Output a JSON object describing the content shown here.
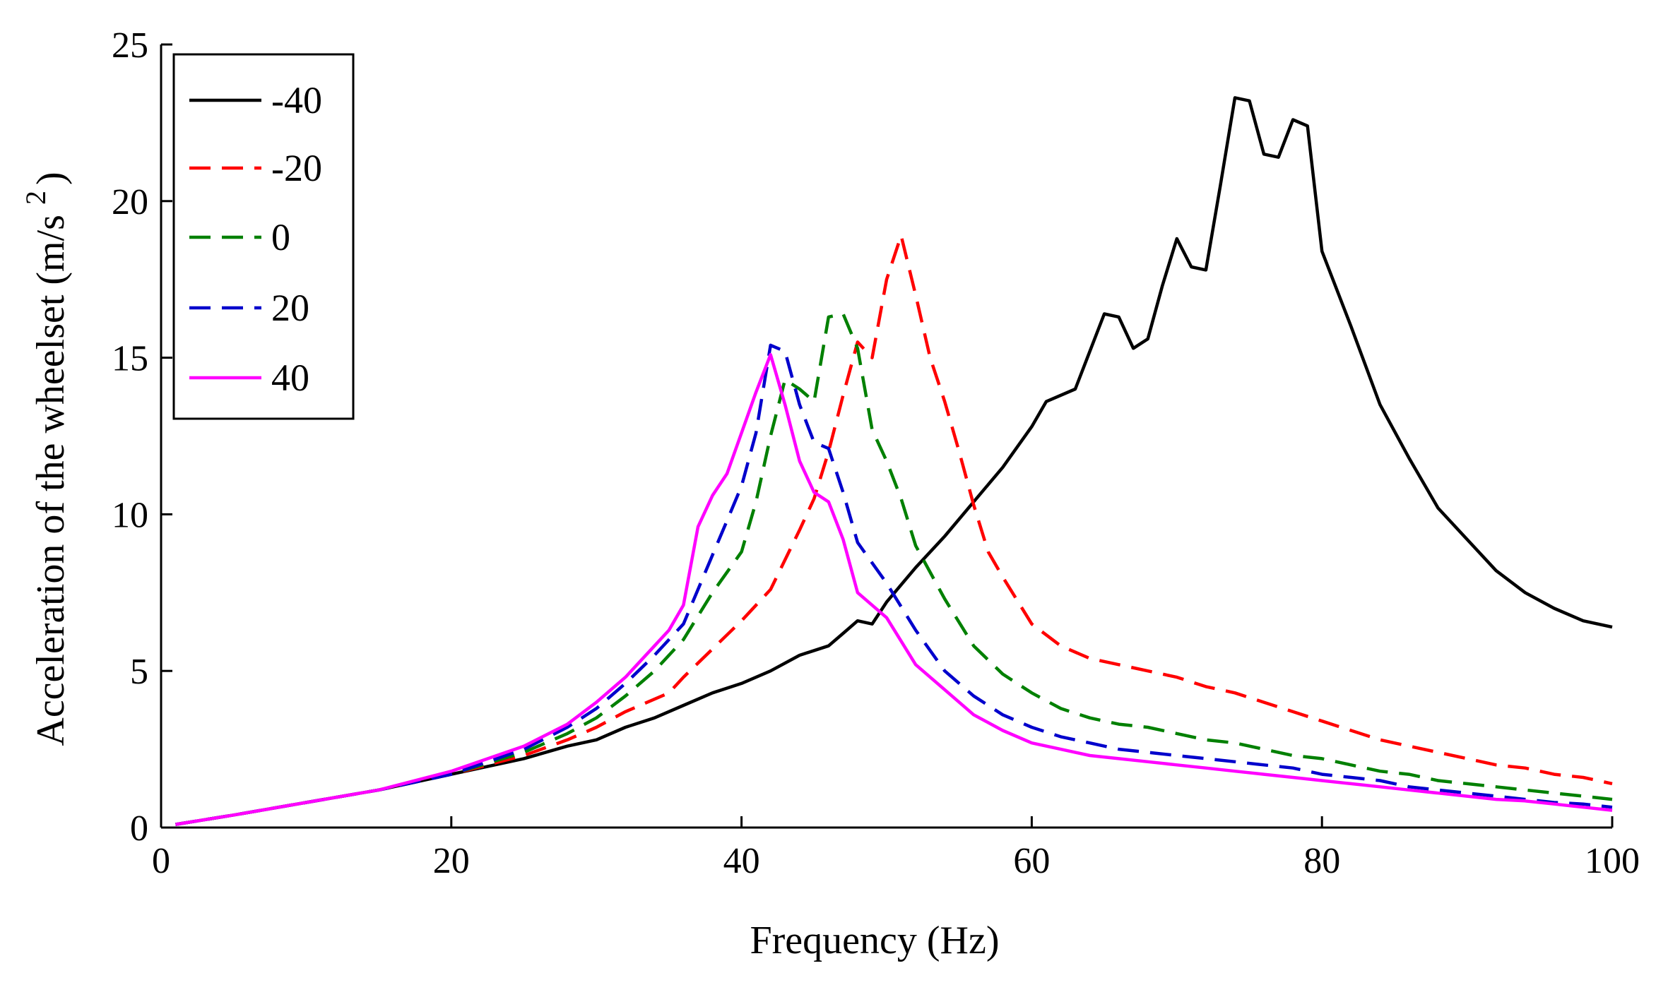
{
  "chart_data": {
    "type": "line",
    "title": "",
    "xlabel": "Frequency (Hz)",
    "ylabel_main": "Acceleration of the wheelset (m/s",
    "ylabel_sup": "2",
    "ylabel_close": ")",
    "xlim": [
      0,
      100
    ],
    "ylim": [
      0,
      25
    ],
    "xticks": [
      0,
      20,
      40,
      60,
      80,
      100
    ],
    "yticks": [
      0,
      5,
      10,
      15,
      20,
      25
    ],
    "xtick_labels": [
      "0",
      "20",
      "40",
      "60",
      "80",
      "100"
    ],
    "ytick_labels": [
      "0",
      "5",
      "10",
      "15",
      "20",
      "25"
    ],
    "grid": false,
    "legend_position": "top-left",
    "series": [
      {
        "name": "-40",
        "color": "#000000",
        "dash": "solid",
        "x": [
          1,
          5,
          10,
          15,
          20,
          25,
          28,
          30,
          32,
          34,
          36,
          38,
          40,
          42,
          44,
          46,
          47,
          48,
          49,
          50,
          52,
          54,
          56,
          58,
          60,
          61,
          63,
          65,
          66,
          67,
          68,
          69,
          70,
          71,
          72,
          73,
          74,
          75,
          76,
          77,
          78,
          79,
          80,
          82,
          84,
          86,
          88,
          90,
          92,
          94,
          96,
          98,
          100
        ],
        "y": [
          0.1,
          0.4,
          0.8,
          1.2,
          1.7,
          2.2,
          2.6,
          2.8,
          3.2,
          3.5,
          3.9,
          4.3,
          4.6,
          5.0,
          5.5,
          5.8,
          6.2,
          6.6,
          6.5,
          7.2,
          8.3,
          9.3,
          10.4,
          11.5,
          12.8,
          13.6,
          14.0,
          16.4,
          16.3,
          15.3,
          15.6,
          17.3,
          18.8,
          17.9,
          17.8,
          20.5,
          23.3,
          23.2,
          21.5,
          21.4,
          22.6,
          22.4,
          18.4,
          16.0,
          13.5,
          11.8,
          10.2,
          9.2,
          8.2,
          7.5,
          7.0,
          6.6,
          6.4
        ]
      },
      {
        "name": "-20",
        "color": "#ff0000",
        "dash": "dashed",
        "x": [
          1,
          5,
          10,
          15,
          20,
          25,
          28,
          30,
          32,
          35,
          36,
          38,
          40,
          42,
          44,
          45,
          46,
          47,
          48,
          49,
          50,
          51,
          52,
          53,
          54,
          55,
          56,
          57,
          58,
          60,
          62,
          64,
          66,
          68,
          70,
          72,
          74,
          76,
          78,
          80,
          82,
          84,
          86,
          88,
          90,
          92,
          94,
          96,
          98,
          100
        ],
        "y": [
          0.1,
          0.4,
          0.8,
          1.2,
          1.7,
          2.3,
          2.8,
          3.2,
          3.7,
          4.3,
          4.8,
          5.7,
          6.6,
          7.6,
          9.5,
          10.5,
          12.0,
          13.8,
          15.5,
          15.0,
          17.5,
          18.9,
          17.0,
          15.0,
          13.6,
          12.0,
          10.3,
          8.8,
          8.0,
          6.5,
          5.8,
          5.4,
          5.2,
          5.0,
          4.8,
          4.5,
          4.3,
          4.0,
          3.7,
          3.4,
          3.1,
          2.8,
          2.6,
          2.4,
          2.2,
          2.0,
          1.9,
          1.7,
          1.6,
          1.4
        ]
      },
      {
        "name": "0",
        "color": "#008000",
        "dash": "dashed",
        "x": [
          1,
          5,
          10,
          15,
          20,
          25,
          28,
          30,
          32,
          34,
          36,
          38,
          40,
          41,
          42,
          43,
          44,
          45,
          46,
          47,
          48,
          49,
          50,
          51,
          52,
          54,
          56,
          58,
          60,
          62,
          64,
          66,
          68,
          70,
          72,
          74,
          76,
          78,
          80,
          82,
          84,
          86,
          88,
          90,
          92,
          94,
          96,
          98,
          100
        ],
        "y": [
          0.1,
          0.4,
          0.8,
          1.2,
          1.7,
          2.4,
          3.0,
          3.5,
          4.2,
          5.0,
          6.0,
          7.5,
          8.8,
          10.4,
          12.5,
          14.3,
          14.0,
          13.6,
          16.3,
          16.4,
          15.3,
          12.7,
          11.7,
          10.5,
          9.0,
          7.3,
          5.8,
          4.9,
          4.3,
          3.8,
          3.5,
          3.3,
          3.2,
          3.0,
          2.8,
          2.7,
          2.5,
          2.3,
          2.2,
          2.0,
          1.8,
          1.7,
          1.5,
          1.4,
          1.3,
          1.2,
          1.1,
          1.0,
          0.9
        ]
      },
      {
        "name": "20",
        "color": "#0000cc",
        "dash": "dashed",
        "x": [
          1,
          5,
          10,
          15,
          20,
          25,
          28,
          30,
          32,
          34,
          36,
          38,
          39,
          40,
          41,
          42,
          43,
          44,
          45,
          46,
          47,
          48,
          50,
          52,
          54,
          56,
          58,
          60,
          62,
          64,
          66,
          68,
          70,
          72,
          74,
          76,
          78,
          80,
          82,
          84,
          86,
          88,
          90,
          92,
          94,
          96,
          98,
          100
        ],
        "y": [
          0.1,
          0.4,
          0.8,
          1.2,
          1.7,
          2.5,
          3.2,
          3.8,
          4.6,
          5.5,
          6.5,
          8.7,
          9.8,
          10.9,
          12.6,
          15.4,
          15.2,
          13.5,
          12.3,
          12.1,
          10.7,
          9.1,
          7.8,
          6.3,
          5.0,
          4.2,
          3.6,
          3.2,
          2.9,
          2.7,
          2.5,
          2.4,
          2.3,
          2.2,
          2.1,
          2.0,
          1.9,
          1.7,
          1.6,
          1.5,
          1.3,
          1.2,
          1.1,
          1.0,
          0.9,
          0.8,
          0.75,
          0.65
        ]
      },
      {
        "name": "40",
        "color": "#ff00ff",
        "dash": "solid",
        "x": [
          1,
          5,
          10,
          15,
          20,
          25,
          28,
          30,
          32,
          34,
          35,
          36,
          37,
          38,
          39,
          40,
          41,
          42,
          43,
          44,
          45,
          46,
          47,
          48,
          50,
          52,
          54,
          56,
          58,
          60,
          62,
          64,
          66,
          68,
          70,
          72,
          74,
          76,
          78,
          80,
          82,
          84,
          86,
          88,
          90,
          92,
          94,
          96,
          98,
          100
        ],
        "y": [
          0.1,
          0.4,
          0.8,
          1.2,
          1.8,
          2.6,
          3.3,
          4.0,
          4.8,
          5.8,
          6.3,
          7.1,
          9.6,
          10.6,
          11.3,
          12.6,
          13.9,
          15.1,
          13.5,
          11.7,
          10.7,
          10.4,
          9.2,
          7.5,
          6.7,
          5.2,
          4.4,
          3.6,
          3.1,
          2.7,
          2.5,
          2.3,
          2.2,
          2.1,
          2.0,
          1.9,
          1.8,
          1.7,
          1.6,
          1.5,
          1.4,
          1.3,
          1.2,
          1.1,
          1.0,
          0.9,
          0.85,
          0.75,
          0.65,
          0.55
        ]
      }
    ]
  }
}
